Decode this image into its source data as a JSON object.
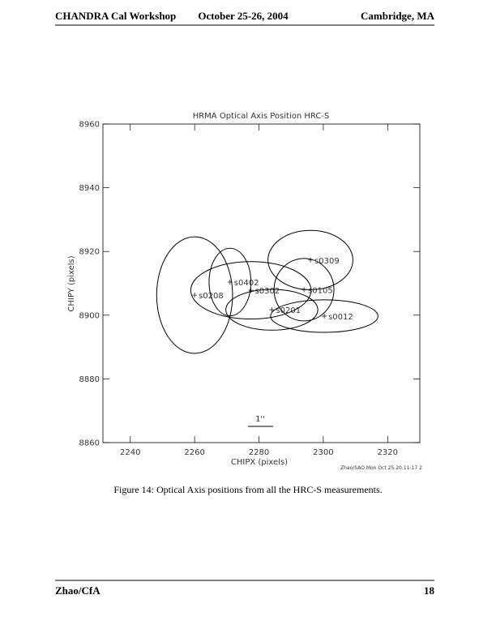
{
  "header": {
    "left": "CHANDRA Cal Workshop",
    "center": "October 25-26, 2004",
    "right": "Cambridge, MA"
  },
  "chart_data": {
    "type": "scatter",
    "title": "HRMA Optical Axis Position  HRC-S",
    "xlabel": "CHIPX (pixels)",
    "ylabel": "CHIPY (pixels)",
    "labels": [
      "s0208",
      "s0402",
      "s0302",
      "s0309",
      "s0105",
      "s0201",
      "s0012"
    ],
    "x": [
      2260,
      2271,
      2277.5,
      2296,
      2294,
      2284,
      2300.3
    ],
    "y": [
      8906.3,
      8910.4,
      8907.8,
      8917.3,
      8908,
      8901.7,
      8899.7
    ],
    "rx": [
      11.8,
      6.5,
      18.7,
      13.2,
      9.3,
      14.3,
      16.7
    ],
    "ry": [
      18.3,
      10.6,
      9.0,
      9.3,
      9.8,
      6.4,
      5.1
    ],
    "xlim": [
      2231.5,
      2330
    ],
    "xticks": [
      2240,
      2260,
      2280,
      2300,
      2320
    ],
    "ylim": [
      8860,
      8960
    ],
    "yticks": [
      8860,
      8880,
      8900,
      8920,
      8940,
      8960
    ],
    "color": "#000000",
    "scale_label": "1''",
    "stamp": "Zhao/SAO Mon Oct 25 20:11:17 2"
  },
  "caption": "Figure 14: Optical Axis positions from all the HRC-S measurements.",
  "footer": {
    "left": "Zhao/CfA",
    "right": "18"
  }
}
